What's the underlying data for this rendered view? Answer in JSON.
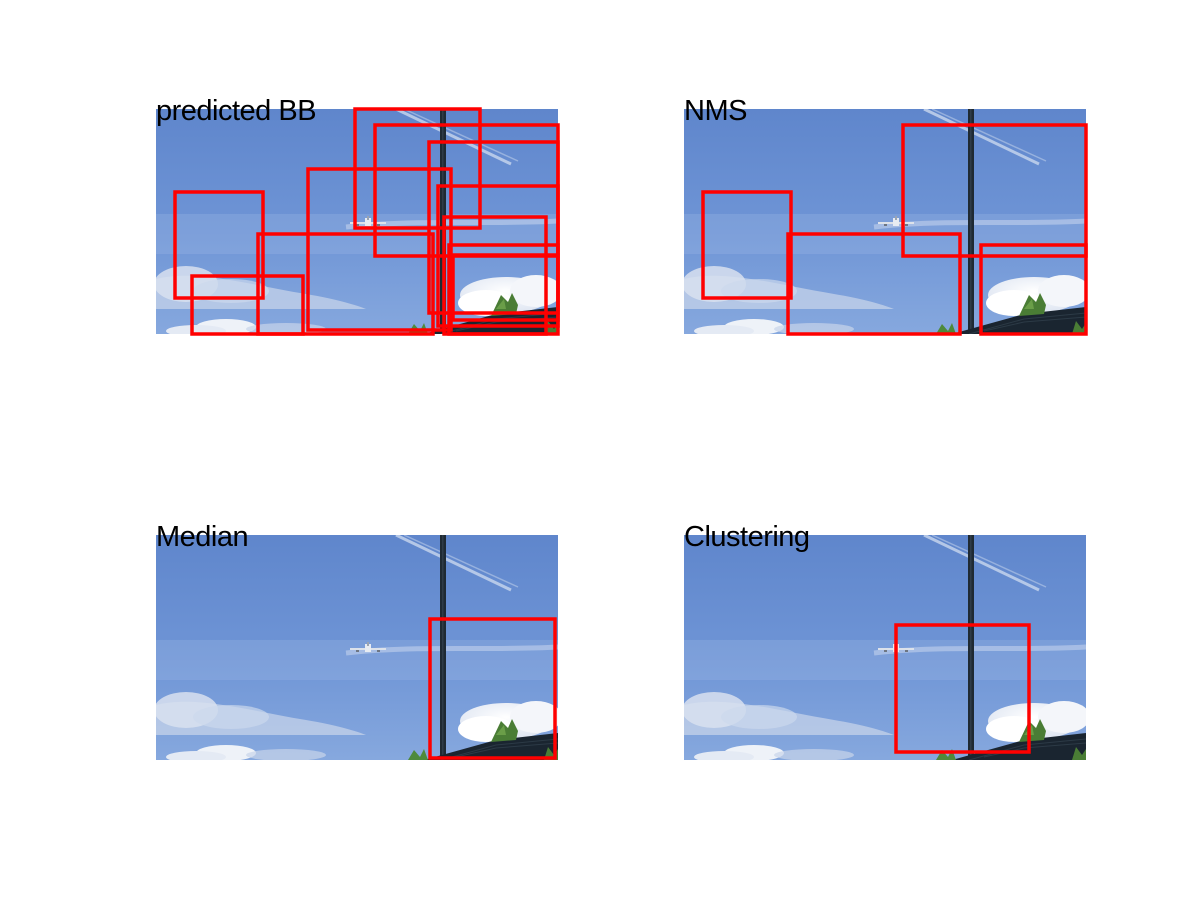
{
  "figure": {
    "panels": [
      {
        "title": "predicted BB",
        "boxes": [
          [
            175,
            192,
            263,
            298
          ],
          [
            192,
            276,
            303,
            334
          ],
          [
            258,
            234,
            433,
            334
          ],
          [
            308,
            169,
            451,
            330
          ],
          [
            355,
            109,
            480,
            228
          ],
          [
            375,
            125,
            558,
            256
          ],
          [
            429,
            142,
            558,
            313
          ],
          [
            438,
            186,
            558,
            326
          ],
          [
            444,
            217,
            546,
            334
          ],
          [
            449,
            245,
            558,
            334
          ],
          [
            453,
            255,
            558,
            320
          ]
        ]
      },
      {
        "title": "NMS",
        "boxes": [
          [
            703,
            192,
            791,
            298
          ],
          [
            788,
            234,
            960,
            334
          ],
          [
            903,
            125,
            1086,
            256
          ],
          [
            981,
            245,
            1086,
            334
          ]
        ]
      },
      {
        "title": "Median",
        "boxes": [
          [
            430,
            619,
            555,
            758
          ]
        ]
      },
      {
        "title": "Clustering",
        "boxes": [
          [
            896,
            625,
            1029,
            752
          ]
        ]
      }
    ],
    "box_color": "#ff0000"
  }
}
